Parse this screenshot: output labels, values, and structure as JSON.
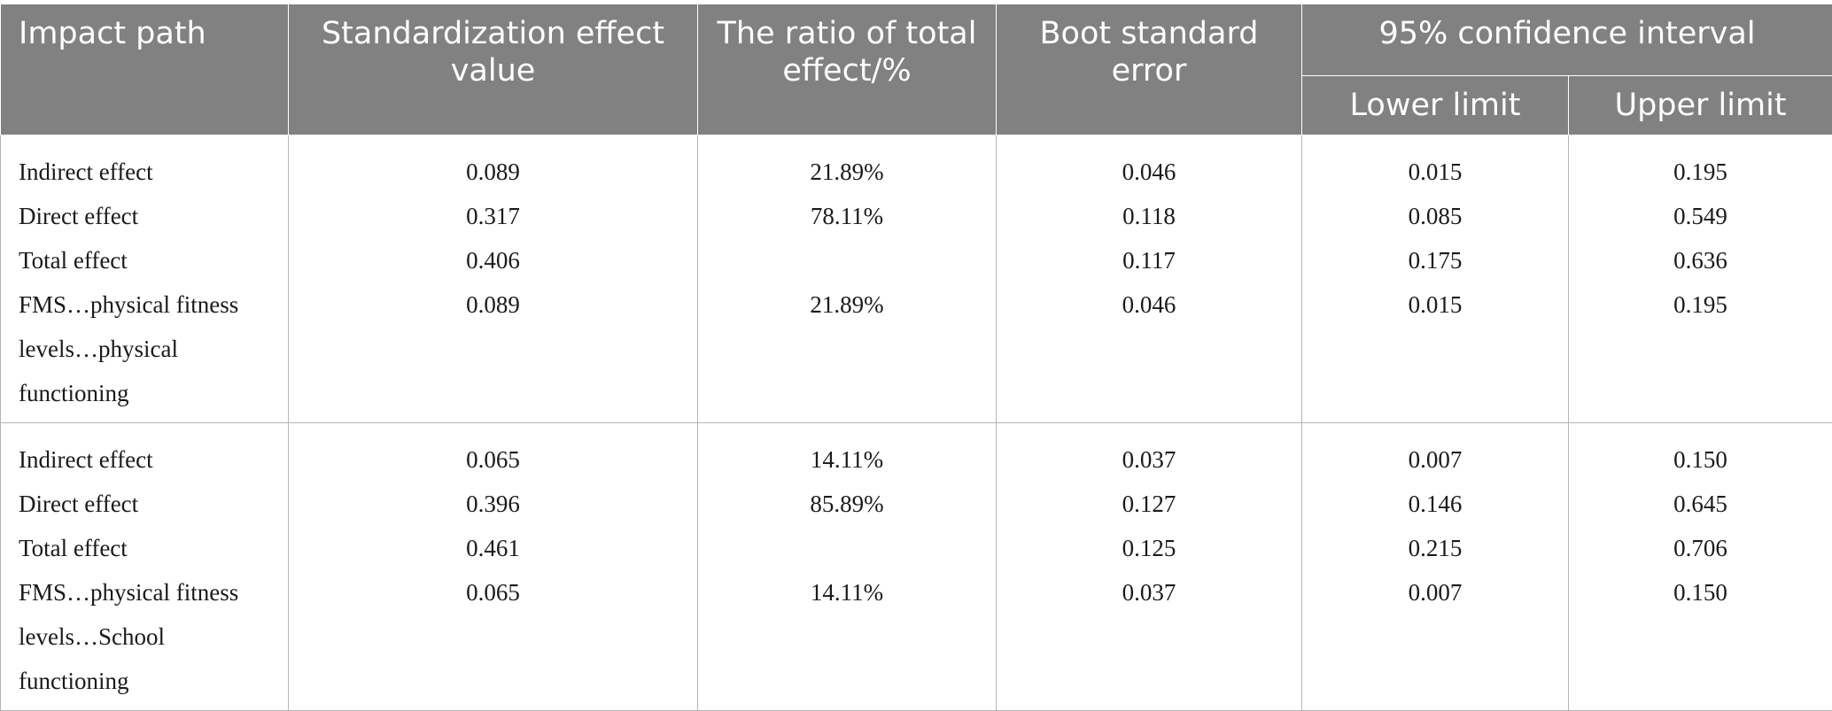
{
  "header": {
    "impact_path": "Impact path",
    "std_effect_line1": "Standardization effect",
    "std_effect_line2": "value",
    "ratio_line1": "The ratio of total",
    "ratio_line2": "effect/%",
    "boot_line1": "Boot standard",
    "boot_line2": "error",
    "ci": "95% confidence interval",
    "lower": "Lower limit",
    "upper": "Upper limit"
  },
  "groups": [
    {
      "rows": [
        {
          "path": "Indirect effect",
          "std": "0.089",
          "ratio": "21.89%",
          "boot": "0.046",
          "lower": "0.015",
          "upper": "0.195"
        },
        {
          "path": "Direct effect",
          "std": "0.317",
          "ratio": "78.11%",
          "boot": "0.118",
          "lower": "0.085",
          "upper": "0.549"
        },
        {
          "path": "Total effect",
          "std": "0.406",
          "ratio": "",
          "boot": "0.117",
          "lower": "0.175",
          "upper": "0.636"
        }
      ],
      "final": {
        "path_lines": [
          "FMS…physical fitness",
          "levels…physical",
          "functioning"
        ],
        "std": "0.089",
        "ratio": "21.89%",
        "boot": "0.046",
        "lower": "0.015",
        "upper": "0.195"
      }
    },
    {
      "rows": [
        {
          "path": "Indirect effect",
          "std": "0.065",
          "ratio": "14.11%",
          "boot": "0.037",
          "lower": "0.007",
          "upper": "0.150"
        },
        {
          "path": "Direct effect",
          "std": "0.396",
          "ratio": "85.89%",
          "boot": "0.127",
          "lower": "0.146",
          "upper": "0.645"
        },
        {
          "path": "Total effect",
          "std": "0.461",
          "ratio": "",
          "boot": "0.125",
          "lower": "0.215",
          "upper": "0.706"
        }
      ],
      "final": {
        "path_lines": [
          "FMS…physical fitness",
          "levels…School",
          "functioning"
        ],
        "std": "0.065",
        "ratio": "14.11%",
        "boot": "0.037",
        "lower": "0.007",
        "upper": "0.150"
      }
    }
  ]
}
